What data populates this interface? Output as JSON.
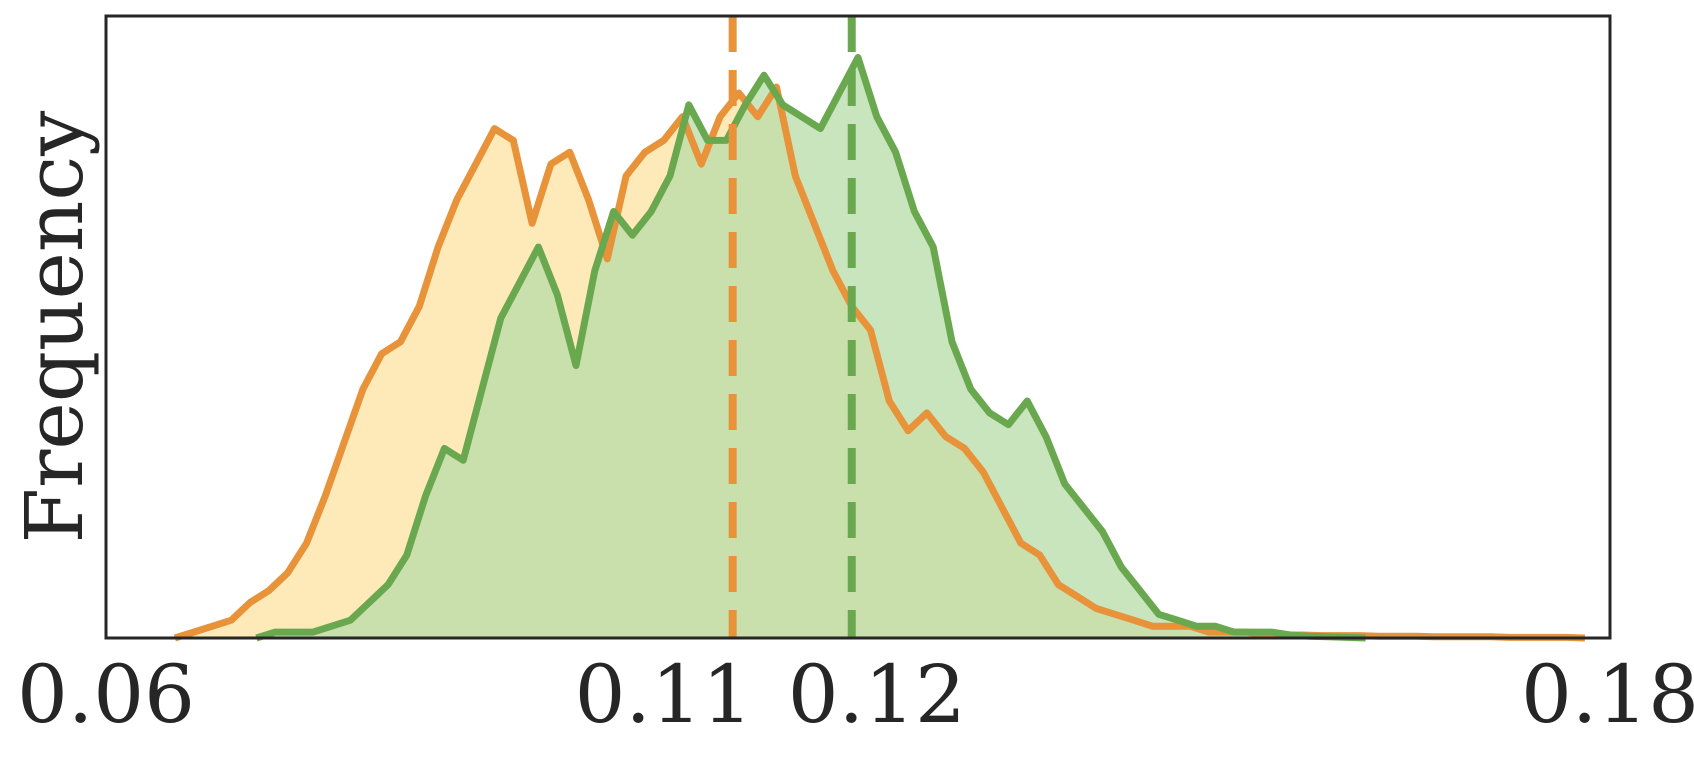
{
  "chart_data": {
    "type": "area",
    "title": "",
    "xlabel": "",
    "ylabel": "Frequency",
    "xlim": [
      0.06,
      0.18
    ],
    "ylim": [
      0,
      1.05
    ],
    "grid": false,
    "legend": "none",
    "x_ticks": [
      {
        "value": 0.06,
        "label": "0.06"
      },
      {
        "value": 0.11,
        "label": "0.11"
      },
      {
        "value": 0.12,
        "label": "0.12"
      },
      {
        "value": 0.18,
        "label": "0.18"
      }
    ],
    "axis_break_note": "tick labels printed at axis positions as shown",
    "tick_positions_data": [
      0.06,
      0.1045,
      0.1215,
      0.18
    ],
    "series": [
      {
        "color": "#e8923a",
        "fill": "#fde3a0",
        "mean_line": 0.11,
        "x": [
          0.0655,
          0.067,
          0.0685,
          0.07,
          0.0715,
          0.073,
          0.0745,
          0.076,
          0.0775,
          0.079,
          0.0805,
          0.082,
          0.0835,
          0.085,
          0.0865,
          0.088,
          0.0895,
          0.091,
          0.0925,
          0.094,
          0.0955,
          0.097,
          0.0985,
          0.1,
          0.1015,
          0.103,
          0.1045,
          0.106,
          0.1075,
          0.109,
          0.1105,
          0.112,
          0.1135,
          0.115,
          0.1165,
          0.118,
          0.1195,
          0.121,
          0.1225,
          0.124,
          0.1255,
          0.127,
          0.1285,
          0.13,
          0.1315,
          0.133,
          0.1345,
          0.136,
          0.1375,
          0.139,
          0.1405,
          0.142,
          0.1435,
          0.145,
          0.1465,
          0.148,
          0.1495,
          0.151,
          0.1525,
          0.154,
          0.1555,
          0.157,
          0.1585,
          0.16,
          0.1615,
          0.163,
          0.1645,
          0.166,
          0.1675,
          0.169,
          0.1705,
          0.172,
          0.1735,
          0.175,
          0.1765,
          0.178
        ],
        "y": [
          0,
          0.01,
          0.02,
          0.03,
          0.06,
          0.08,
          0.11,
          0.16,
          0.24,
          0.33,
          0.42,
          0.48,
          0.5,
          0.56,
          0.66,
          0.74,
          0.8,
          0.86,
          0.84,
          0.7,
          0.8,
          0.82,
          0.74,
          0.64,
          0.78,
          0.82,
          0.84,
          0.88,
          0.8,
          0.88,
          0.92,
          0.88,
          0.93,
          0.78,
          0.7,
          0.62,
          0.56,
          0.52,
          0.4,
          0.35,
          0.38,
          0.34,
          0.32,
          0.28,
          0.22,
          0.16,
          0.14,
          0.09,
          0.07,
          0.05,
          0.04,
          0.03,
          0.02,
          0.02,
          0.02,
          0.01,
          0.01,
          0.01,
          0.005,
          0.005,
          0.005,
          0.004,
          0.004,
          0.004,
          0.003,
          0.003,
          0.003,
          0.002,
          0.002,
          0.002,
          0.002,
          0.001,
          0.001,
          0.001,
          0.001,
          0
        ]
      },
      {
        "color": "#6aa84f",
        "fill": "#b7dca8",
        "mean_line": 0.1195,
        "x": [
          0.072,
          0.0735,
          0.075,
          0.0765,
          0.078,
          0.0795,
          0.081,
          0.0825,
          0.084,
          0.0855,
          0.087,
          0.0885,
          0.09,
          0.0915,
          0.093,
          0.0945,
          0.096,
          0.0975,
          0.099,
          0.1005,
          0.102,
          0.1035,
          0.105,
          0.1065,
          0.108,
          0.1095,
          0.111,
          0.1125,
          0.114,
          0.1155,
          0.117,
          0.1185,
          0.12,
          0.1215,
          0.123,
          0.1245,
          0.126,
          0.1275,
          0.129,
          0.1305,
          0.132,
          0.1335,
          0.135,
          0.1365,
          0.138,
          0.1395,
          0.141,
          0.1425,
          0.144,
          0.1455,
          0.147,
          0.1485,
          0.15,
          0.1515,
          0.153,
          0.1545,
          0.156,
          0.1575,
          0.159,
          0.1605
        ],
        "y": [
          0,
          0.01,
          0.01,
          0.01,
          0.02,
          0.03,
          0.06,
          0.09,
          0.14,
          0.24,
          0.32,
          0.3,
          0.42,
          0.54,
          0.6,
          0.66,
          0.58,
          0.46,
          0.62,
          0.72,
          0.68,
          0.72,
          0.78,
          0.9,
          0.84,
          0.84,
          0.9,
          0.95,
          0.9,
          0.88,
          0.86,
          0.92,
          0.98,
          0.88,
          0.82,
          0.72,
          0.66,
          0.5,
          0.42,
          0.38,
          0.36,
          0.4,
          0.34,
          0.26,
          0.22,
          0.18,
          0.12,
          0.08,
          0.04,
          0.03,
          0.02,
          0.02,
          0.01,
          0.01,
          0.01,
          0.005,
          0.003,
          0.002,
          0.001,
          0
        ]
      }
    ]
  }
}
